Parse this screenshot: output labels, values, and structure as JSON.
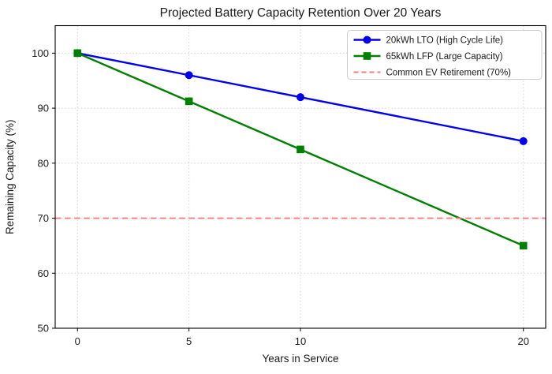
{
  "chart_data": {
    "type": "line",
    "title": "Projected Battery Capacity Retention Over 20 Years",
    "xlabel": "Years in Service",
    "ylabel": "Remaining Capacity (%)",
    "x": [
      0,
      5,
      10,
      20
    ],
    "series": [
      {
        "name": "20kWh LTO (High Cycle Life)",
        "values": [
          100,
          96,
          92,
          84
        ],
        "color": "#0000ee",
        "marker": "circle"
      },
      {
        "name": "65kWh LFP (Large Capacity)",
        "values": [
          100,
          91.25,
          82.5,
          65
        ],
        "color": "#008000",
        "marker": "square"
      }
    ],
    "reference_line": {
      "label": "Common EV Retirement (70%)",
      "y": 70,
      "color": "#f57d7d",
      "style": "dashed"
    },
    "xticks": [
      0,
      5,
      10,
      20
    ],
    "yticks": [
      50,
      60,
      70,
      80,
      90,
      100
    ],
    "xlim": [
      -1,
      21
    ],
    "ylim": [
      50,
      105
    ],
    "grid": true,
    "legend_position": "upper right",
    "colors": {
      "grid": "#c9c9c9",
      "spine": "#000000",
      "background": "#ffffff",
      "legend_border": "#cccccc",
      "text": "#1a1a1a"
    }
  }
}
